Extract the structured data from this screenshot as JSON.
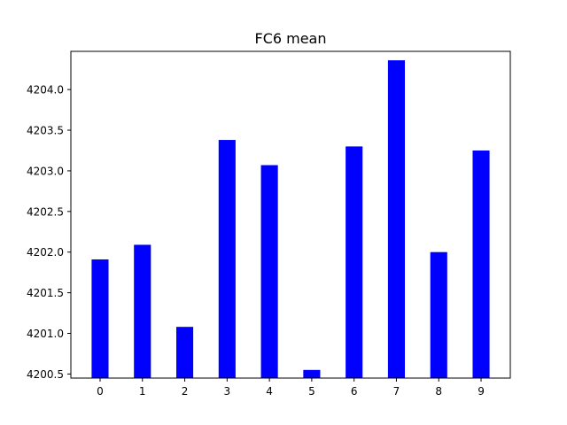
{
  "chart_data": {
    "type": "bar",
    "title": "FC6 mean",
    "xlabel": "",
    "ylabel": "",
    "categories": [
      "0",
      "1",
      "2",
      "3",
      "4",
      "5",
      "6",
      "7",
      "8",
      "9"
    ],
    "values": [
      4201.91,
      4202.09,
      4201.08,
      4203.38,
      4203.07,
      4200.55,
      4203.3,
      4204.36,
      4202.0,
      4203.25
    ],
    "ylim": [
      4200.45,
      4204.47
    ],
    "yticks": [
      "4200.5",
      "4201.0",
      "4201.5",
      "4202.0",
      "4202.5",
      "4203.0",
      "4203.5",
      "4204.0"
    ],
    "bar_color": "#0000ff",
    "grid": false,
    "legend": "none"
  }
}
